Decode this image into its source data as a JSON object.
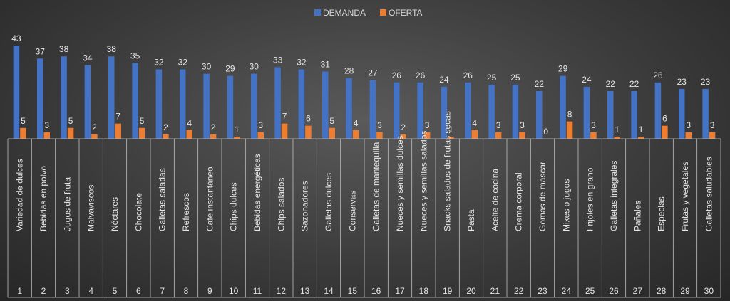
{
  "chart_data": {
    "type": "bar",
    "title": "",
    "xlabel": "",
    "ylabel": "",
    "ylim": [
      0,
      43
    ],
    "grid": false,
    "legend_position": "top-center",
    "numbers": [
      "1",
      "2",
      "3",
      "4",
      "5",
      "6",
      "7",
      "8",
      "9",
      "10",
      "11",
      "12",
      "13",
      "14",
      "15",
      "16",
      "17",
      "18",
      "19",
      "20",
      "21",
      "22",
      "23",
      "24",
      "25",
      "26",
      "27",
      "28",
      "29",
      "30"
    ],
    "categories": [
      "Variedad de dulces",
      "Bebidas en polvo",
      "Jugos de fruta",
      "Malvaviscos",
      "Néctares",
      "Chocolate",
      "Galletas saladas",
      "Refrescos",
      "Café instantáneo",
      "Chips dulces",
      "Bebidas energéticas",
      "Chips salados",
      "Sazonadores",
      "Galletas dulces",
      "Conservas",
      "Galletas de mantequilla",
      "Nueces y semillas dulces",
      "Nueces y semillas salados",
      "Snacks salados de frutas secas",
      "Pasta",
      "Aceite de cocina",
      "Crema corporal",
      "Gomas de mascar",
      "Mixes o jugos",
      "Frijoles en grano",
      "Galletas integrales",
      "Pañales",
      "Especias",
      "Frutas y vegetales",
      "Galletas saludables"
    ],
    "series": [
      {
        "name": "DEMANDA",
        "color": "#4472c4",
        "values": [
          43,
          37,
          38,
          34,
          38,
          35,
          32,
          32,
          30,
          29,
          30,
          33,
          32,
          31,
          28,
          27,
          26,
          26,
          24,
          26,
          25,
          25,
          22,
          29,
          24,
          22,
          22,
          26,
          23,
          23
        ]
      },
      {
        "name": "OFERTA",
        "color": "#ed7d31",
        "values": [
          5,
          3,
          5,
          2,
          7,
          5,
          2,
          4,
          2,
          1,
          3,
          7,
          6,
          5,
          4,
          3,
          2,
          3,
          1,
          4,
          3,
          3,
          0,
          8,
          3,
          1,
          1,
          6,
          3,
          3
        ]
      }
    ]
  }
}
